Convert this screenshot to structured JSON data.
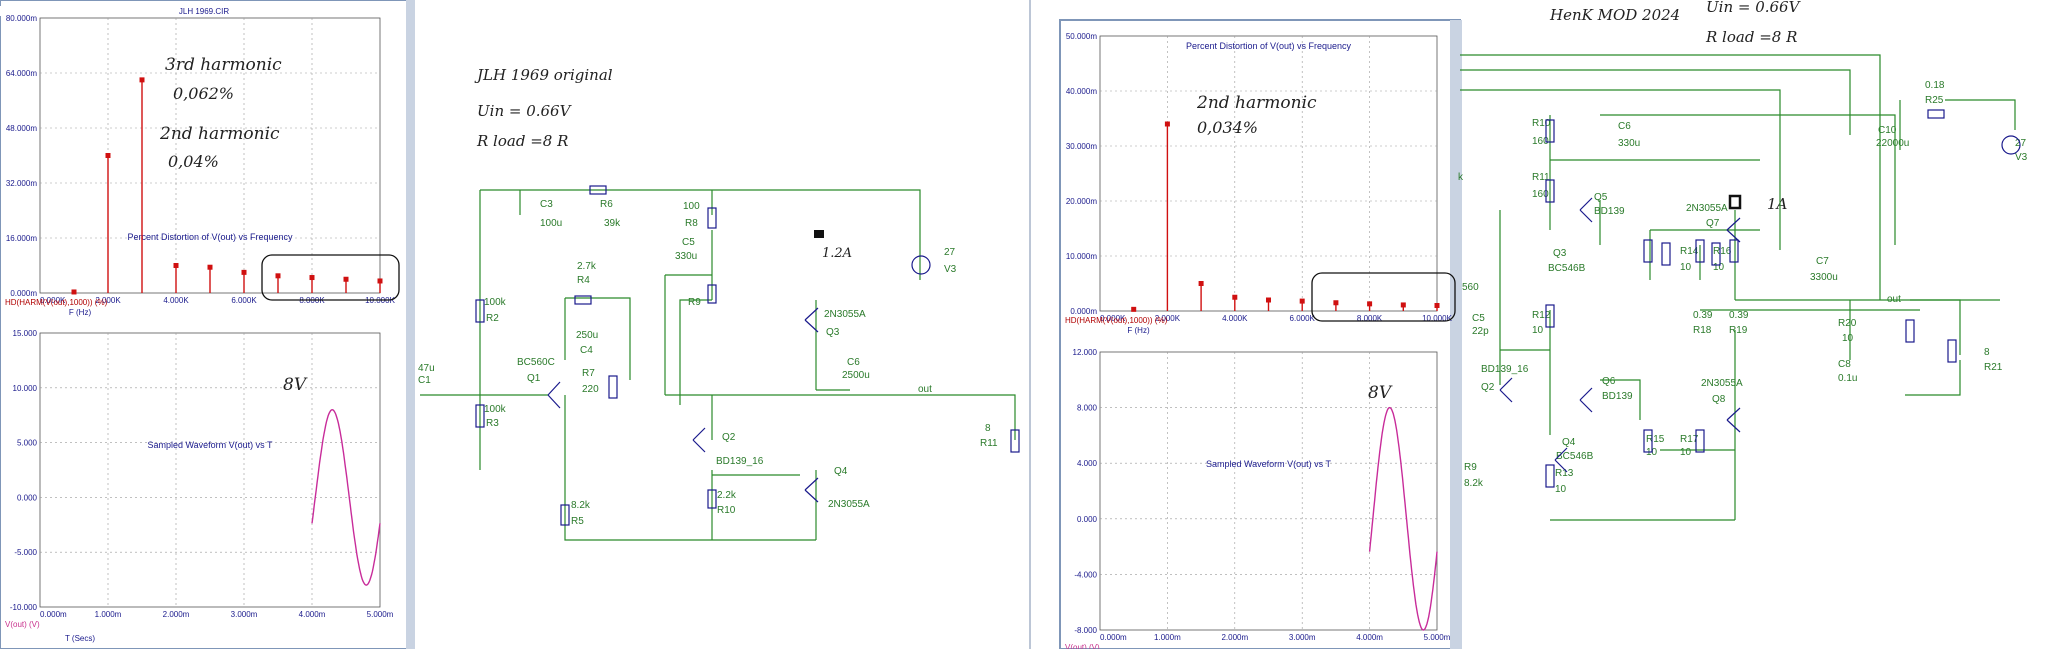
{
  "left_window": {
    "title": "JLH 1969.CIR"
  },
  "right_window": {
    "title": ""
  },
  "chart_data": [
    {
      "type": "scatter",
      "title": "Percent Distortion of V(out) vs Frequency",
      "xlabel": "F (Hz)",
      "ylabel": "HD(HARM(V(out),1000)) (%)",
      "x_ticks": [
        "0.000K",
        "2.000K",
        "4.000K",
        "6.000K",
        "8.000K",
        "10.000K"
      ],
      "y_ticks": [
        "0.000m",
        "16.000m",
        "32.000m",
        "48.000m",
        "64.000m",
        "80.000m"
      ],
      "xlim": [
        0,
        10000
      ],
      "ylim": [
        0,
        80
      ],
      "x": [
        1000,
        2000,
        3000,
        4000,
        5000,
        6000,
        7000,
        8000,
        9000,
        10000
      ],
      "y": [
        0.3,
        40,
        62,
        8,
        7.5,
        6,
        5,
        4.5,
        4,
        3.5
      ],
      "annotations": [
        {
          "label": "3rd harmonic",
          "value": "0,062%"
        },
        {
          "label": "2nd harmonic",
          "value": "0,04%"
        }
      ]
    },
    {
      "type": "line",
      "title": "Sampled Waveform  V(out) vs T",
      "xlabel": "T (Secs)",
      "ylabel": "V(out) (V)",
      "x_ticks": [
        "0.000m",
        "1.000m",
        "2.000m",
        "3.000m",
        "4.000m",
        "5.000m"
      ],
      "y_ticks": [
        "-10.000",
        "-5.000",
        "0.000",
        "5.000",
        "10.000",
        "15.000"
      ],
      "xlim": [
        0,
        5
      ],
      "ylim": [
        -10,
        15
      ],
      "annotation": "8V"
    },
    {
      "type": "scatter",
      "title": "Percent Distortion of V(out) vs Frequency",
      "xlabel": "F (Hz)",
      "ylabel": "HD(HARM(V(out),1000)) (%)",
      "x_ticks": [
        "0.000K",
        "2.000K",
        "4.000K",
        "6.000K",
        "8.000K",
        "10.000K"
      ],
      "y_ticks": [
        "0.000m",
        "10.000m",
        "20.000m",
        "30.000m",
        "40.000m",
        "50.000m"
      ],
      "xlim": [
        0,
        10000
      ],
      "ylim": [
        0,
        50
      ],
      "x": [
        1000,
        2000,
        3000,
        4000,
        5000,
        6000,
        7000,
        8000,
        9000,
        10000
      ],
      "y": [
        0.3,
        34,
        5,
        2.5,
        2,
        1.8,
        1.5,
        1.3,
        1.1,
        1
      ],
      "annotations": [
        {
          "label": "2nd harmonic",
          "value": "0,034%"
        }
      ]
    },
    {
      "type": "line",
      "title": "Sampled Waveform  V(out) vs T",
      "xlabel": "",
      "ylabel": "V(out) (V)",
      "x_ticks": [
        "0.000m",
        "1.000m",
        "2.000m",
        "3.000m",
        "4.000m",
        "5.000m"
      ],
      "y_ticks": [
        "-8.000",
        "-4.000",
        "0.000",
        "4.000",
        "8.000",
        "12.000"
      ],
      "xlim": [
        0,
        5
      ],
      "ylim": [
        -8,
        12
      ],
      "annotation": "8V"
    }
  ],
  "left_notes": {
    "title": "JLH 1969  original",
    "uin": "Uin = 0.66V",
    "rload": "R load =8 R",
    "current": "1.2A"
  },
  "right_notes": {
    "title": "HenK MOD 2024",
    "uin": "Uin = 0.66V",
    "rload": "R load =8 R",
    "current": "1A"
  },
  "left_schematic": {
    "labels": [
      {
        "t": "C3",
        "x": 1,
        "y": 1
      },
      {
        "t": "100u",
        "x": 1,
        "y": 1
      },
      {
        "t": "R6",
        "x": 1,
        "y": 1
      },
      {
        "t": "39k",
        "x": 1,
        "y": 1
      },
      {
        "t": "100",
        "x": 1,
        "y": 1
      },
      {
        "t": "R8",
        "x": 1,
        "y": 1
      },
      {
        "t": "C5",
        "x": 1,
        "y": 1
      },
      {
        "t": "330u",
        "x": 1,
        "y": 1
      },
      {
        "t": "2.7k",
        "x": 1,
        "y": 1
      },
      {
        "t": "R4",
        "x": 1,
        "y": 1
      },
      {
        "t": "R9",
        "x": 1,
        "y": 1
      },
      {
        "t": "100k",
        "x": 1,
        "y": 1
      },
      {
        "t": "R2",
        "x": 1,
        "y": 1
      },
      {
        "t": "250u",
        "x": 1,
        "y": 1
      },
      {
        "t": "C4",
        "x": 1,
        "y": 1
      },
      {
        "t": "R7",
        "x": 1,
        "y": 1
      },
      {
        "t": "220",
        "x": 1,
        "y": 1
      },
      {
        "t": "BC560C",
        "x": 1,
        "y": 1
      },
      {
        "t": "Q1",
        "x": 1,
        "y": 1
      },
      {
        "t": "47u",
        "x": 1,
        "y": 1
      },
      {
        "t": "C1",
        "x": 1,
        "y": 1
      },
      {
        "t": "100k",
        "x": 1,
        "y": 1
      },
      {
        "t": "R3",
        "x": 1,
        "y": 1
      },
      {
        "t": "2N3055A",
        "x": 1,
        "y": 1
      },
      {
        "t": "Q3",
        "x": 1,
        "y": 1
      },
      {
        "t": "C6",
        "x": 1,
        "y": 1
      },
      {
        "t": "2500u",
        "x": 1,
        "y": 1
      },
      {
        "t": "out",
        "x": 1,
        "y": 1
      },
      {
        "t": "Q2",
        "x": 1,
        "y": 1
      },
      {
        "t": "BD139_16",
        "x": 1,
        "y": 1
      },
      {
        "t": "Q4",
        "x": 1,
        "y": 1
      },
      {
        "t": "2N3055A",
        "x": 1,
        "y": 1
      },
      {
        "t": "2.2k",
        "x": 1,
        "y": 1
      },
      {
        "t": "R10",
        "x": 1,
        "y": 1
      },
      {
        "t": "8.2k",
        "x": 1,
        "y": 1
      },
      {
        "t": "R5",
        "x": 1,
        "y": 1
      },
      {
        "t": "8",
        "x": 1,
        "y": 1
      },
      {
        "t": "R11",
        "x": 1,
        "y": 1
      },
      {
        "t": "27",
        "x": 1,
        "y": 1
      },
      {
        "t": "V3",
        "x": 1,
        "y": 1
      }
    ]
  },
  "right_schematic": {
    "labels": [
      {
        "t": "R10"
      },
      {
        "t": "160"
      },
      {
        "t": "C6"
      },
      {
        "t": "330u"
      },
      {
        "t": "R11"
      },
      {
        "t": "160"
      },
      {
        "t": "Q5"
      },
      {
        "t": "BD139"
      },
      {
        "t": "2N3055A"
      },
      {
        "t": "Q7"
      },
      {
        "t": "Q3"
      },
      {
        "t": "BC546B"
      },
      {
        "t": "R14"
      },
      {
        "t": "10"
      },
      {
        "t": "R16"
      },
      {
        "t": "10"
      },
      {
        "t": "0.18"
      },
      {
        "t": "R25"
      },
      {
        "t": "C10"
      },
      {
        "t": "22000u"
      },
      {
        "t": "27"
      },
      {
        "t": "V3"
      },
      {
        "t": "C7"
      },
      {
        "t": "3300u"
      },
      {
        "t": "560"
      },
      {
        "t": "C5"
      },
      {
        "t": "22p"
      },
      {
        "t": "R12"
      },
      {
        "t": "10"
      },
      {
        "t": "0.39"
      },
      {
        "t": "R18"
      },
      {
        "t": "0.39"
      },
      {
        "t": "R19"
      },
      {
        "t": "out"
      },
      {
        "t": "R20"
      },
      {
        "t": "10"
      },
      {
        "t": "8"
      },
      {
        "t": "R21"
      },
      {
        "t": "C8"
      },
      {
        "t": "0.1u"
      },
      {
        "t": "BD139_16"
      },
      {
        "t": "Q2"
      },
      {
        "t": "Q6"
      },
      {
        "t": "BD139"
      },
      {
        "t": "2N3055A"
      },
      {
        "t": "Q8"
      },
      {
        "t": "Q4"
      },
      {
        "t": "BC546B"
      },
      {
        "t": "R15"
      },
      {
        "t": "10"
      },
      {
        "t": "R17"
      },
      {
        "t": "10"
      },
      {
        "t": "R13"
      },
      {
        "t": "10"
      },
      {
        "t": "R9"
      },
      {
        "t": "8.2k"
      },
      {
        "t": "k"
      }
    ]
  }
}
